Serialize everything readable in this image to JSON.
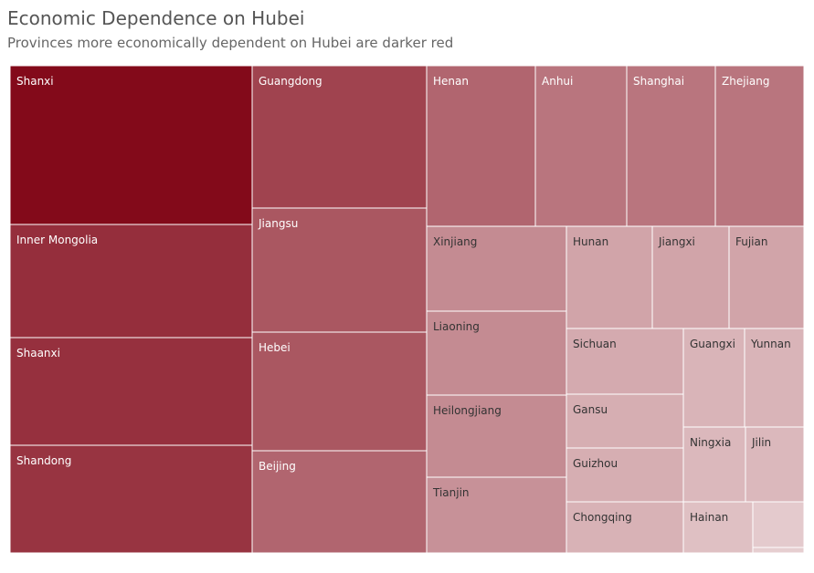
{
  "chart_data": {
    "type": "treemap",
    "title": "Economic Dependence on Hubei",
    "subtitle": "Provinces more economically dependent on Hubei are darker red",
    "color_scale": {
      "low": "#e9d4d6",
      "high": "#830a1a"
    },
    "tiles": [
      {
        "label": "Shanxi",
        "dependence": 1.0
      },
      {
        "label": "Inner Mongolia",
        "dependence": 0.82
      },
      {
        "label": "Shaanxi",
        "dependence": 0.81
      },
      {
        "label": "Shandong",
        "dependence": 0.79
      },
      {
        "label": "Guangdong",
        "dependence": 0.72
      },
      {
        "label": "Jiangsu",
        "dependence": 0.62
      },
      {
        "label": "Hebei",
        "dependence": 0.62
      },
      {
        "label": "Beijing",
        "dependence": 0.55
      },
      {
        "label": "Henan",
        "dependence": 0.55
      },
      {
        "label": "Anhui",
        "dependence": 0.47
      },
      {
        "label": "Shanghai",
        "dependence": 0.47
      },
      {
        "label": "Zhejiang",
        "dependence": 0.47
      },
      {
        "label": "Xinjiang",
        "dependence": 0.36
      },
      {
        "label": "Liaoning",
        "dependence": 0.36
      },
      {
        "label": "Heilongjiang",
        "dependence": 0.36
      },
      {
        "label": "Tianjin",
        "dependence": 0.33
      },
      {
        "label": "Hunan",
        "dependence": 0.24
      },
      {
        "label": "Jiangxi",
        "dependence": 0.24
      },
      {
        "label": "Fujian",
        "dependence": 0.24
      },
      {
        "label": "Sichuan",
        "dependence": 0.21
      },
      {
        "label": "Gansu",
        "dependence": 0.19
      },
      {
        "label": "Guizhou",
        "dependence": 0.19
      },
      {
        "label": "Chongqing",
        "dependence": 0.17
      },
      {
        "label": "Guangxi",
        "dependence": 0.16
      },
      {
        "label": "Yunnan",
        "dependence": 0.16
      },
      {
        "label": "Ningxia",
        "dependence": 0.14
      },
      {
        "label": "Jilin",
        "dependence": 0.14
      },
      {
        "label": "Hainan",
        "dependence": 0.1
      },
      {
        "label": "",
        "dependence": 0.05
      },
      {
        "label": "",
        "dependence": 0.03
      }
    ]
  }
}
